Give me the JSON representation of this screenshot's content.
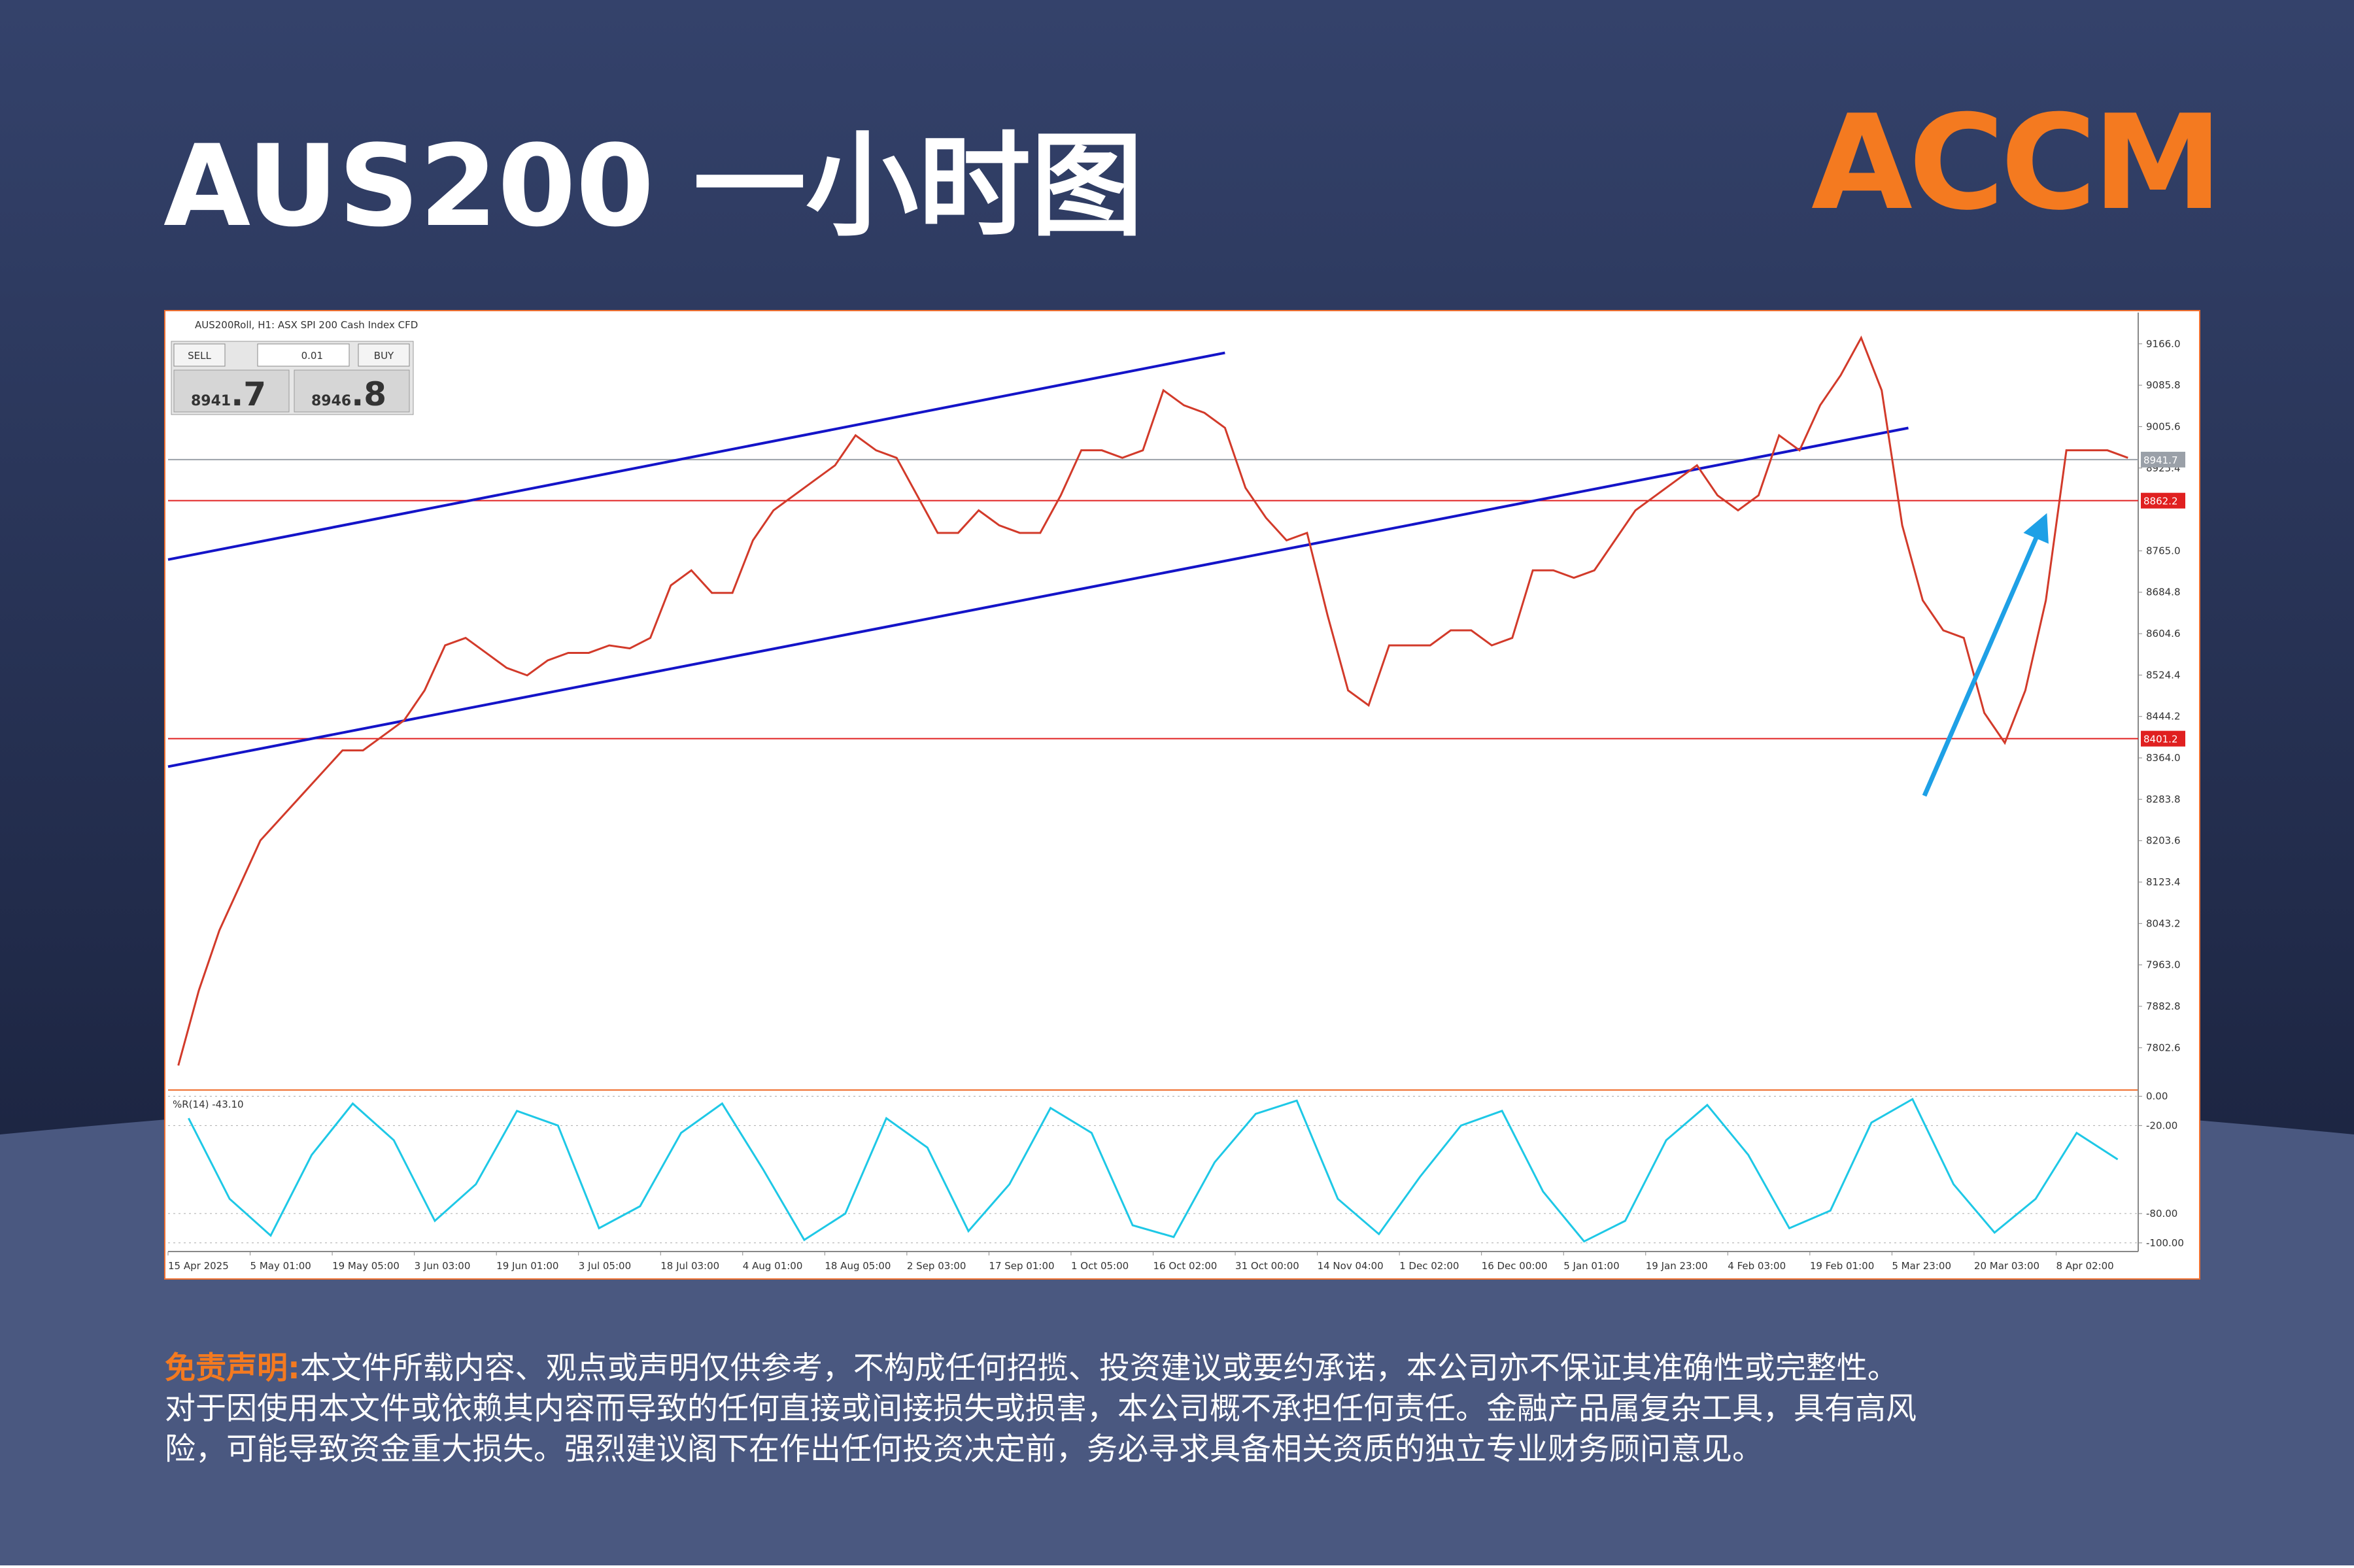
{
  "header": {
    "title": "AUS200 一小时图",
    "logo": "ACCM"
  },
  "trade_panel": {
    "sell": "SELL",
    "lot": "0.01",
    "buy": "BUY",
    "sell_big": "8941",
    "sell_small": ".7",
    "buy_big": "8946",
    "buy_small": ".8"
  },
  "chart_data": [
    {
      "type": "line",
      "title": "AUS200Roll, H1:  ASX SPI 200 Cash Index CFD",
      "color": "#d23a2a",
      "grid": false,
      "categories": [
        "15 Apr 2025",
        null,
        null,
        null,
        "5 May 01:00",
        null,
        null,
        null,
        "19 May 05:00",
        null,
        null,
        null,
        "3 Jun 03:00",
        null,
        null,
        null,
        "19 Jun 01:00",
        null,
        null,
        null,
        "3 Jul 05:00",
        null,
        null,
        null,
        "18 Jul 03:00",
        null,
        null,
        null,
        "4 Aug 01:00",
        null,
        null,
        null,
        "18 Aug 05:00",
        null,
        null,
        null,
        "2 Sep 03:00",
        null,
        null,
        null,
        "17 Sep 01:00",
        null,
        null,
        null,
        "1 Oct 05:00",
        null,
        null,
        null,
        "16 Oct 02:00",
        null,
        null,
        null,
        "31 Oct 00:00",
        null,
        null,
        null,
        "14 Nov 04:00",
        null,
        null,
        null,
        "1 Dec 02:00",
        null,
        null,
        null,
        "16 Dec 00:00",
        null,
        null,
        null,
        "5 Jan 01:00",
        null,
        null,
        null,
        "19 Jan 23:00",
        null,
        null,
        null,
        "4 Feb 03:00",
        null,
        null,
        null,
        "19 Feb 01:00",
        null,
        null,
        null,
        "5 Mar 23:00",
        null,
        null,
        null,
        "20 Mar 03:00",
        null,
        null,
        null,
        "8 Apr 02:00",
        null,
        null,
        null
      ],
      "values": [
        7768.2,
        7913.5,
        8029.8,
        8116.9,
        8204.1,
        8247.7,
        8291.3,
        8334.9,
        8378.5,
        8378.5,
        8407.5,
        8436.6,
        8494.7,
        8581.9,
        8596.4,
        8567.4,
        8538.3,
        8523.8,
        8552.8,
        8567.4,
        8567.4,
        8581.9,
        8576.1,
        8596.4,
        8698.1,
        8727.2,
        8683.6,
        8683.6,
        8785.3,
        8843.4,
        8872.5,
        8901.6,
        8930.6,
        8988.7,
        8959.7,
        8945.1,
        8872.5,
        8799.8,
        8799.8,
        8843.4,
        8814.4,
        8799.8,
        8799.8,
        8872.5,
        8959.7,
        8959.7,
        8945.1,
        8959.7,
        9075.9,
        9046.9,
        9032.3,
        9003.3,
        8887.0,
        8828.9,
        8785.3,
        8799.8,
        8640.0,
        8494.7,
        8465.7,
        8581.9,
        8581.9,
        8581.9,
        8611.0,
        8611.0,
        8581.9,
        8596.4,
        8727.2,
        8727.2,
        8712.7,
        8727.2,
        8785.3,
        8843.4,
        8872.5,
        8901.6,
        8930.6,
        8872.5,
        8843.4,
        8872.5,
        8988.7,
        8959.7,
        9046.9,
        9105.0,
        9177.6,
        9075.9,
        8814.4,
        8669.1,
        8611.0,
        8596.4,
        8451.1,
        8393.0,
        8494.7,
        8669.1,
        8959.7,
        8959.7,
        8959.7,
        8945.1
      ],
      "ylim": [
        7727,
        9224
      ],
      "yticks": [
        {
          "value": 9166,
          "label": "9166.0"
        },
        {
          "value": 9085.8,
          "label": "9085.8"
        },
        {
          "value": 9005.6,
          "label": "9005.6"
        },
        {
          "value": 8925.4,
          "label": "8925.4"
        },
        {
          "value": 8765,
          "label": "8765.0"
        },
        {
          "value": 8684.8,
          "label": "8684.8"
        },
        {
          "value": 8604.6,
          "label": "8604.6"
        },
        {
          "value": 8524.4,
          "label": "8524.4"
        },
        {
          "value": 8444.2,
          "label": "8444.2"
        },
        {
          "value": 8364,
          "label": "8364.0"
        },
        {
          "value": 8283.8,
          "label": "8283.8"
        },
        {
          "value": 8203.6,
          "label": "8203.6"
        },
        {
          "value": 8123.4,
          "label": "8123.4"
        },
        {
          "value": 8043.2,
          "label": "8043.2"
        },
        {
          "value": 7963,
          "label": "7963.0"
        },
        {
          "value": 7882.8,
          "label": "7882.8"
        },
        {
          "value": 7802.6,
          "label": "7802.6"
        }
      ],
      "levels": [
        {
          "value": 8941.7,
          "color": "#9aa0a8"
        },
        {
          "value": 8862.2,
          "color": "#e02020"
        },
        {
          "value": 8401.2,
          "color": "#e02020"
        }
      ],
      "trendlines": [
        {
          "color": "#1414c8",
          "from": [
            0,
            8748
          ],
          "to": [
            51.5,
            9148.6
          ]
        },
        {
          "color": "#1414c8",
          "from": [
            0,
            8347
          ],
          "to": [
            84.8,
            9003
          ]
        }
      ]
    },
    {
      "type": "line",
      "title": "%R(14) -43.10",
      "color": "#1ec8e6",
      "grid": true,
      "values": [
        -15,
        -70,
        -95,
        -40,
        -5,
        -30,
        -85,
        -60,
        -10,
        -20,
        -90,
        -75,
        -25,
        -5,
        -50,
        -98,
        -80,
        -15,
        -35,
        -92,
        -60,
        -8,
        -25,
        -88,
        -96,
        -45,
        -12,
        -3,
        -70,
        -94,
        -55,
        -20,
        -10,
        -65,
        -99,
        -85,
        -30,
        -6,
        -40,
        -90,
        -78,
        -18,
        -2,
        -60,
        -93,
        -70,
        -25,
        -43.1
      ],
      "ylim": [
        -105,
        2
      ],
      "yticks": [
        {
          "value": 0,
          "label": "0.00"
        },
        {
          "value": -20,
          "label": "-20.00"
        },
        {
          "value": -80,
          "label": "-80.00"
        },
        {
          "value": -100,
          "label": "-100.00"
        }
      ]
    }
  ],
  "disclaimer": {
    "label": "免责声明:",
    "lines": [
      "本文件所载内容、观点或声明仅供参考，不构成任何招揽、投资建议或要约承诺，本公司亦不保证其准确性或完整性。",
      "对于因使用本文件或依赖其内容而导致的任何直接或间接损失或损害，本公司概不承担任何责任。金融产品属复杂工具，具有高风",
      "险，可能导致资金重大损失。强烈建议阁下在作出任何投资决定前，务必寻求具备相关资质的独立专业财务顾问意见。"
    ]
  }
}
